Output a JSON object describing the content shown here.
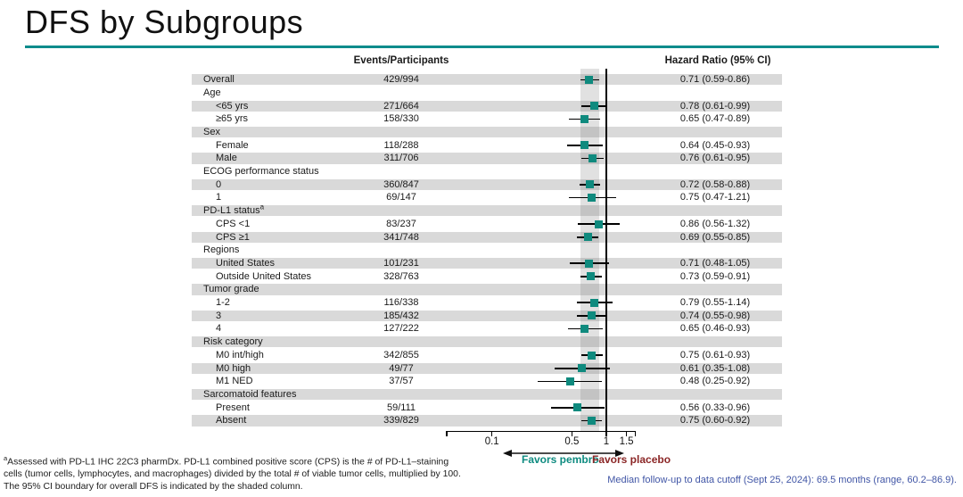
{
  "slide": {
    "title": "DFS by Subgroups",
    "accent_color": "#0e8c8c",
    "stripe_color": "#d9d9d9"
  },
  "table": {
    "events_header": "Events/Participants",
    "hr_header": "Hazard Ratio (95% CI)"
  },
  "chart_data": {
    "type": "forest",
    "x_scale": "log",
    "x_ticks": [
      "0.1",
      "0.5",
      "1",
      "1.5"
    ],
    "x_tick_values": [
      0.1,
      0.5,
      1,
      1.5
    ],
    "reference_line": 1,
    "shaded_band": [
      0.59,
      0.86
    ],
    "marker_color": "#0f8a7e",
    "rows": [
      {
        "label": "Overall",
        "indent": 0,
        "events": "429/994",
        "hr_text": "0.71 (0.59-0.86)",
        "hr": 0.71,
        "lo": 0.59,
        "hi": 0.86
      },
      {
        "label": "Age",
        "indent": 0,
        "header": true
      },
      {
        "label": "<65 yrs",
        "indent": 1,
        "events": "271/664",
        "hr_text": "0.78 (0.61-0.99)",
        "hr": 0.78,
        "lo": 0.61,
        "hi": 0.99
      },
      {
        "label": "≥65 yrs",
        "indent": 1,
        "events": "158/330",
        "hr_text": "0.65 (0.47-0.89)",
        "hr": 0.65,
        "lo": 0.47,
        "hi": 0.89
      },
      {
        "label": "Sex",
        "indent": 0,
        "header": true
      },
      {
        "label": "Female",
        "indent": 1,
        "events": "118/288",
        "hr_text": "0.64 (0.45-0.93)",
        "hr": 0.64,
        "lo": 0.45,
        "hi": 0.93
      },
      {
        "label": "Male",
        "indent": 1,
        "events": "311/706",
        "hr_text": "0.76 (0.61-0.95)",
        "hr": 0.76,
        "lo": 0.61,
        "hi": 0.95
      },
      {
        "label": "ECOG performance status",
        "indent": 0,
        "header": true
      },
      {
        "label": "0",
        "indent": 1,
        "events": "360/847",
        "hr_text": "0.72 (0.58-0.88)",
        "hr": 0.72,
        "lo": 0.58,
        "hi": 0.88
      },
      {
        "label": "1",
        "indent": 1,
        "events": "69/147",
        "hr_text": "0.75 (0.47-1.21)",
        "hr": 0.75,
        "lo": 0.47,
        "hi": 1.21
      },
      {
        "label": "PD-L1 status",
        "sup": "a",
        "indent": 0,
        "header": true
      },
      {
        "label": "CPS <1",
        "indent": 1,
        "events": "83/237",
        "hr_text": "0.86 (0.56-1.32)",
        "hr": 0.86,
        "lo": 0.56,
        "hi": 1.32
      },
      {
        "label": "CPS ≥1",
        "indent": 1,
        "events": "341/748",
        "hr_text": "0.69 (0.55-0.85)",
        "hr": 0.69,
        "lo": 0.55,
        "hi": 0.85
      },
      {
        "label": "Regions",
        "indent": 0,
        "header": true
      },
      {
        "label": "United States",
        "indent": 1,
        "events": "101/231",
        "hr_text": "0.71 (0.48-1.05)",
        "hr": 0.71,
        "lo": 0.48,
        "hi": 1.05
      },
      {
        "label": "Outside United States",
        "indent": 1,
        "events": "328/763",
        "hr_text": "0.73 (0.59-0.91)",
        "hr": 0.73,
        "lo": 0.59,
        "hi": 0.91
      },
      {
        "label": "Tumor grade",
        "indent": 0,
        "header": true
      },
      {
        "label": "1-2",
        "indent": 1,
        "events": "116/338",
        "hr_text": "0.79 (0.55-1.14)",
        "hr": 0.79,
        "lo": 0.55,
        "hi": 1.14
      },
      {
        "label": "3",
        "indent": 1,
        "events": "185/432",
        "hr_text": "0.74 (0.55-0.98)",
        "hr": 0.74,
        "lo": 0.55,
        "hi": 0.98
      },
      {
        "label": "4",
        "indent": 1,
        "events": "127/222",
        "hr_text": "0.65 (0.46-0.93)",
        "hr": 0.65,
        "lo": 0.46,
        "hi": 0.93
      },
      {
        "label": "Risk category",
        "indent": 0,
        "header": true
      },
      {
        "label": "M0 int/high",
        "indent": 1,
        "events": "342/855",
        "hr_text": "0.75 (0.61-0.93)",
        "hr": 0.75,
        "lo": 0.61,
        "hi": 0.93
      },
      {
        "label": "M0 high",
        "indent": 1,
        "events": "49/77",
        "hr_text": "0.61 (0.35-1.08)",
        "hr": 0.61,
        "lo": 0.35,
        "hi": 1.08
      },
      {
        "label": "M1 NED",
        "indent": 1,
        "events": "37/57",
        "hr_text": "0.48 (0.25-0.92)",
        "hr": 0.48,
        "lo": 0.25,
        "hi": 0.92
      },
      {
        "label": "Sarcomatoid features",
        "indent": 0,
        "header": true
      },
      {
        "label": "Present",
        "indent": 1,
        "events": "59/111",
        "hr_text": "0.56 (0.33-0.96)",
        "hr": 0.56,
        "lo": 0.33,
        "hi": 0.96
      },
      {
        "label": "Absent",
        "indent": 1,
        "events": "339/829",
        "hr_text": "0.75 (0.60-0.92)",
        "hr": 0.75,
        "lo": 0.6,
        "hi": 0.92
      }
    ],
    "arrow_left_label": "Favors pembro",
    "arrow_right_label": "Favors placebo",
    "arrow_left_color": "#0e8b80",
    "arrow_right_color": "#8b2626"
  },
  "footnotes": {
    "sup1": "a",
    "line1": "Assessed with PD-L1 IHC 22C3 pharmDx. PD-L1 combined positive score (CPS) is the # of PD-L1–staining",
    "line2": "cells (tumor cells, lymphocytes, and macrophages) divided by the total # of viable tumor cells, multiplied by 100.",
    "line3": "The 95% CI boundary for overall DFS is indicated by the shaded column."
  },
  "median_note": {
    "text": "Median follow-up to data cutoff (Sept 25, 2024): 69.5 months (range, 60.2–86.9).",
    "color": "#4156a6"
  }
}
